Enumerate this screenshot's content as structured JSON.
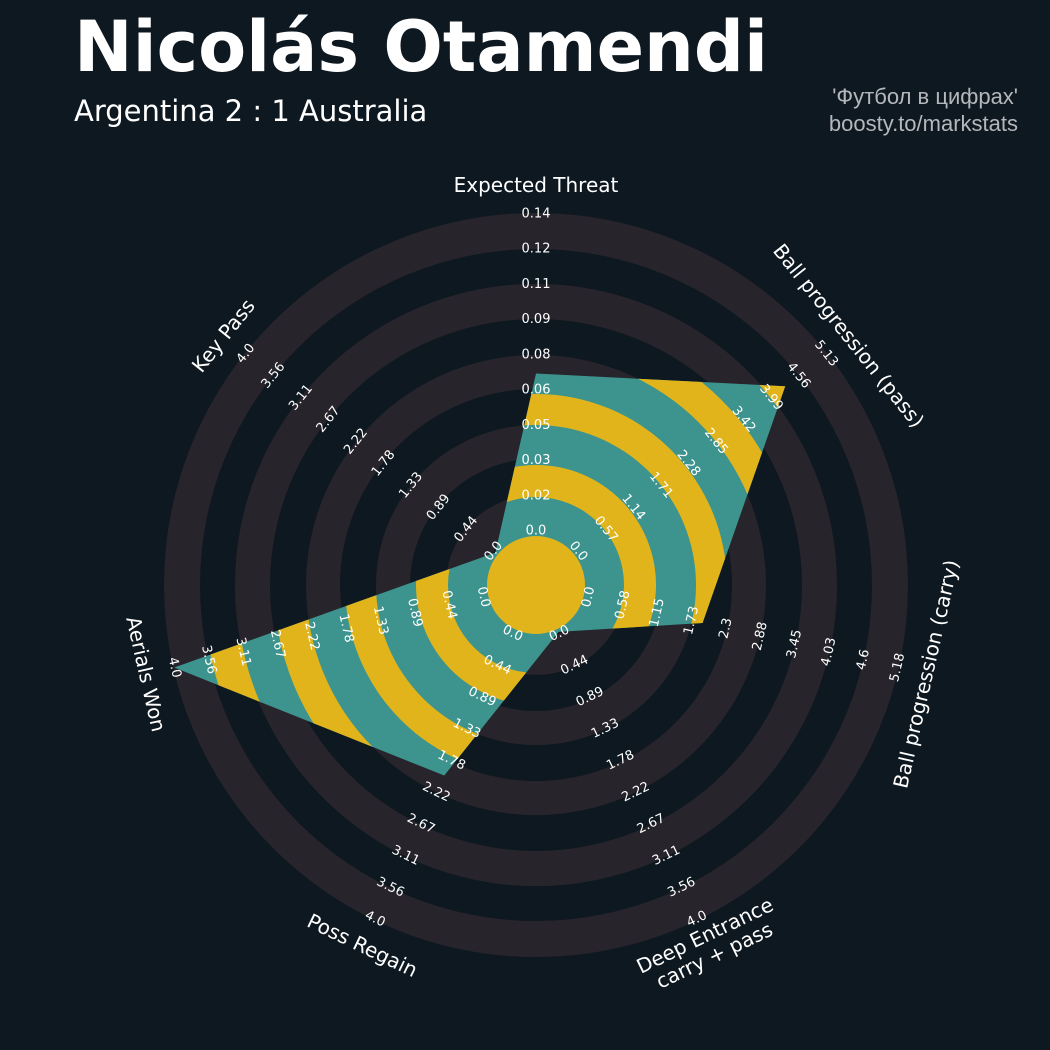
{
  "header": {
    "title": "Nicolás Otamendi",
    "subtitle": "Argentina 2 : 1 Australia",
    "credit_line1": "'Футбол в цифрах'",
    "credit_line2": "boosty.to/markstats"
  },
  "colors": {
    "background": "#0e1820",
    "ring": "#28242b",
    "polygon": "#3d948e",
    "polygon_ring": "#e2b41b"
  },
  "chart_data": {
    "type": "radar",
    "params": [
      {
        "label": [
          "Expected Threat"
        ],
        "ticks": [
          "0.0",
          "0.02",
          "0.03",
          "0.05",
          "0.06",
          "0.08",
          "0.09",
          "0.11",
          "0.12",
          "0.14"
        ],
        "min": 0,
        "max": 0.14,
        "value": 0.07
      },
      {
        "label": [
          "Ball progression (pass)"
        ],
        "ticks": [
          "0.0",
          "0.57",
          "1.14",
          "1.71",
          "2.28",
          "2.85",
          "3.42",
          "3.99",
          "4.56",
          "5.13"
        ],
        "min": 0,
        "max": 5.13,
        "value": 4.29
      },
      {
        "label": [
          "Ball progression (carry)"
        ],
        "ticks": [
          "0.0",
          "0.58",
          "1.15",
          "1.73",
          "2.3",
          "2.88",
          "3.45",
          "4.03",
          "4.6",
          "5.18"
        ],
        "min": 0,
        "max": 5.18,
        "value": 1.93
      },
      {
        "label": [
          "Deep Entrance",
          "carry + pass"
        ],
        "ticks": [
          "0.0",
          "0.44",
          "0.89",
          "1.33",
          "1.78",
          "2.22",
          "2.67",
          "3.11",
          "3.56",
          "4.0"
        ],
        "min": 0,
        "max": 4.0,
        "value": 0
      },
      {
        "label": [
          "Poss Regain"
        ],
        "ticks": [
          "0.0",
          "0.44",
          "0.89",
          "1.33",
          "1.78",
          "2.22",
          "2.67",
          "3.11",
          "3.56",
          "4.0"
        ],
        "min": 0,
        "max": 4.0,
        "value": 2.0
      },
      {
        "label": [
          "Aerials Won"
        ],
        "ticks": [
          "0.0",
          "0.44",
          "0.89",
          "1.33",
          "1.78",
          "2.22",
          "2.67",
          "3.11",
          "3.56",
          "4.0"
        ],
        "min": 0,
        "max": 4.0,
        "value": 4.0
      },
      {
        "label": [
          "Key Pass"
        ],
        "ticks": [
          "0.0",
          "0.44",
          "0.89",
          "1.33",
          "1.78",
          "2.22",
          "2.67",
          "3.11",
          "3.56",
          "4.0"
        ],
        "min": 0,
        "max": 4.0,
        "value": 0
      }
    ]
  }
}
